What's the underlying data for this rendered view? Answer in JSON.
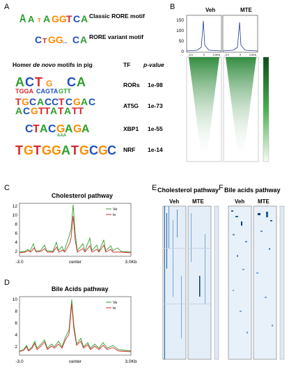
{
  "panels": {
    "a": "A",
    "b": "B",
    "c": "C",
    "d": "D",
    "e": "E",
    "f": "F"
  },
  "panel_a": {
    "classic_label": "Classic RORE motif",
    "variant_label": "RORE variant motif",
    "homer_title_pre": "Homer ",
    "homer_title_em": "de novo",
    "homer_title_post": " motifs in pig",
    "col_tf": "TF",
    "col_p": "p-value",
    "rows": [
      {
        "tf": "RORs",
        "p": "1e-98",
        "logo_top": "ACT G CA",
        "logo_bot": "TGGA CAGTA"
      },
      {
        "tf": "AT5G",
        "p": "1e-73",
        "logo_top": "TGCACCTCGAC",
        "logo_bot": "ACGTTATATT"
      },
      {
        "tf": "XBP1",
        "p": "1e-55",
        "logo_top": "CTACGAGA",
        "logo_bot": ""
      },
      {
        "tf": "NRF",
        "p": "1e-14",
        "logo_top": "TGTGGATGCGC",
        "logo_bot": ""
      }
    ]
  },
  "panel_b": {
    "veh_label": "Veh",
    "mte_label": "MTE",
    "y_ticks": [
      "150",
      "100",
      "50",
      "0"
    ],
    "x_ticks": [
      "-3.0",
      "0",
      "3.0Kb"
    ],
    "colorbar_ticks": [
      "",
      "",
      "",
      "",
      "",
      "",
      "",
      "",
      ""
    ]
  },
  "panel_c": {
    "title": "Cholesterol pathway",
    "y_ticks": [
      "12",
      "10",
      "8",
      "6",
      "4",
      "2"
    ],
    "x_ticks": [
      "-3.0",
      "center",
      "3.0Kb"
    ],
    "legend": [
      {
        "name": "Ve",
        "color": "#2ca02c"
      },
      {
        "name": "tx",
        "color": "#d62728"
      }
    ]
  },
  "panel_d": {
    "title": "Bile Acids pathway",
    "y_ticks": [
      "10",
      "8",
      "6",
      "4",
      "2"
    ],
    "x_ticks": [
      "-3.0",
      "center",
      "3.0Kb"
    ],
    "legend": [
      {
        "name": "Ve",
        "color": "#2ca02c"
      },
      {
        "name": "tx",
        "color": "#d62728"
      }
    ]
  },
  "panel_e": {
    "title": "Cholesterol pathway",
    "veh_label": "Veh",
    "mte_label": "MTE"
  },
  "panel_f": {
    "title": "Bile acids pathway",
    "veh_label": "Veh",
    "mte_label": "MTE"
  },
  "colors": {
    "green": "#2ca02c",
    "red": "#d62728",
    "blue_line": "#1f3a93",
    "heat_green": "#1b7f2a",
    "heat_blue": "#1f5f9e"
  }
}
